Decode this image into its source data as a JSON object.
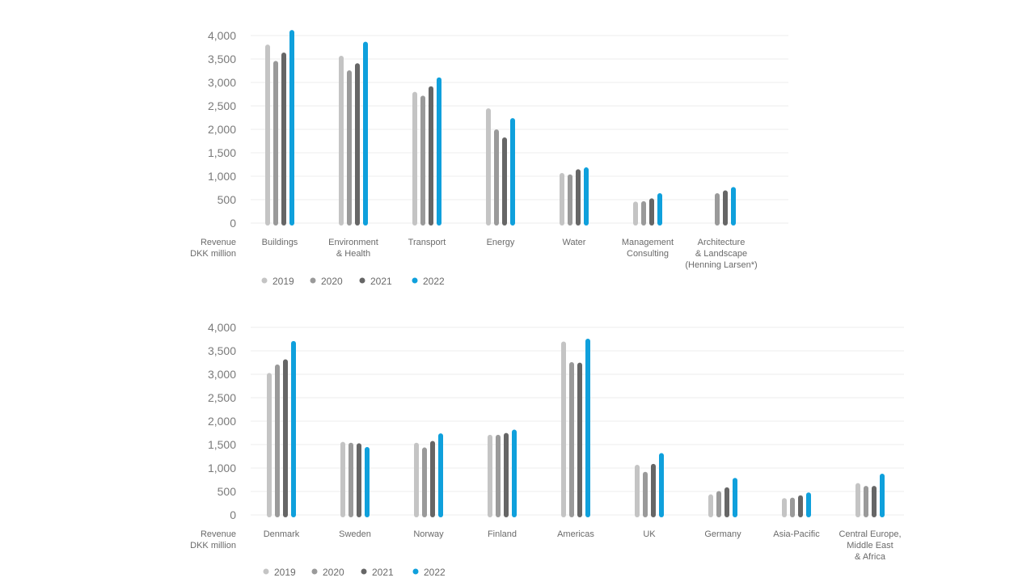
{
  "chart_data": [
    {
      "type": "bar",
      "unit_label": [
        "Revenue",
        "DKK million"
      ],
      "categories": [
        [
          "Buildings"
        ],
        [
          "Environment",
          "& Health"
        ],
        [
          "Transport"
        ],
        [
          "Energy"
        ],
        [
          "Water"
        ],
        [
          "Management",
          "Consulting"
        ],
        [
          "Architecture",
          "& Landscape",
          "(Henning Larsen*)"
        ]
      ],
      "series": [
        {
          "name": "2019",
          "color": "#c4c4c4",
          "values": [
            3800,
            3560,
            2790,
            2440,
            1060,
            450,
            null
          ]
        },
        {
          "name": "2020",
          "color": "#9a9a9a",
          "values": [
            3450,
            3250,
            2710,
            1990,
            1030,
            460,
            630
          ]
        },
        {
          "name": "2021",
          "color": "#666666",
          "values": [
            3630,
            3400,
            2910,
            1820,
            1140,
            520,
            690
          ]
        },
        {
          "name": "2022",
          "color": "#0fa0dc",
          "values": [
            4110,
            3860,
            3100,
            2230,
            1180,
            630,
            760
          ]
        }
      ],
      "ylim": [
        0,
        4000
      ],
      "yticks": [
        "0",
        "500",
        "1,000",
        "1,500",
        "2,000",
        "2,500",
        "3,000",
        "3,500",
        "4,000"
      ],
      "grid": true,
      "legend": "bottom-left"
    },
    {
      "type": "bar",
      "unit_label": [
        "Revenue",
        "DKK million"
      ],
      "categories": [
        [
          "Denmark"
        ],
        [
          "Sweden"
        ],
        [
          "Norway"
        ],
        [
          "Finland"
        ],
        [
          "Americas"
        ],
        [
          "UK"
        ],
        [
          "Germany"
        ],
        [
          "Asia-Pacific"
        ],
        [
          "Central Europe,",
          "Middle East",
          "& Africa"
        ]
      ],
      "series": [
        {
          "name": "2019",
          "color": "#c4c4c4",
          "values": [
            3020,
            1550,
            1530,
            1700,
            3690,
            1060,
            430,
            350,
            670
          ]
        },
        {
          "name": "2020",
          "color": "#9a9a9a",
          "values": [
            3200,
            1530,
            1430,
            1700,
            3250,
            910,
            500,
            360,
            610
          ]
        },
        {
          "name": "2021",
          "color": "#666666",
          "values": [
            3310,
            1520,
            1570,
            1740,
            3240,
            1080,
            580,
            410,
            610
          ]
        },
        {
          "name": "2022",
          "color": "#0fa0dc",
          "values": [
            3700,
            1440,
            1730,
            1810,
            3750,
            1310,
            780,
            470,
            870
          ]
        }
      ],
      "ylim": [
        0,
        4000
      ],
      "yticks": [
        "0",
        "500",
        "1,000",
        "1,500",
        "2,000",
        "2,500",
        "3,000",
        "3,500",
        "4,000"
      ],
      "grid": true,
      "legend": "bottom-left"
    }
  ]
}
